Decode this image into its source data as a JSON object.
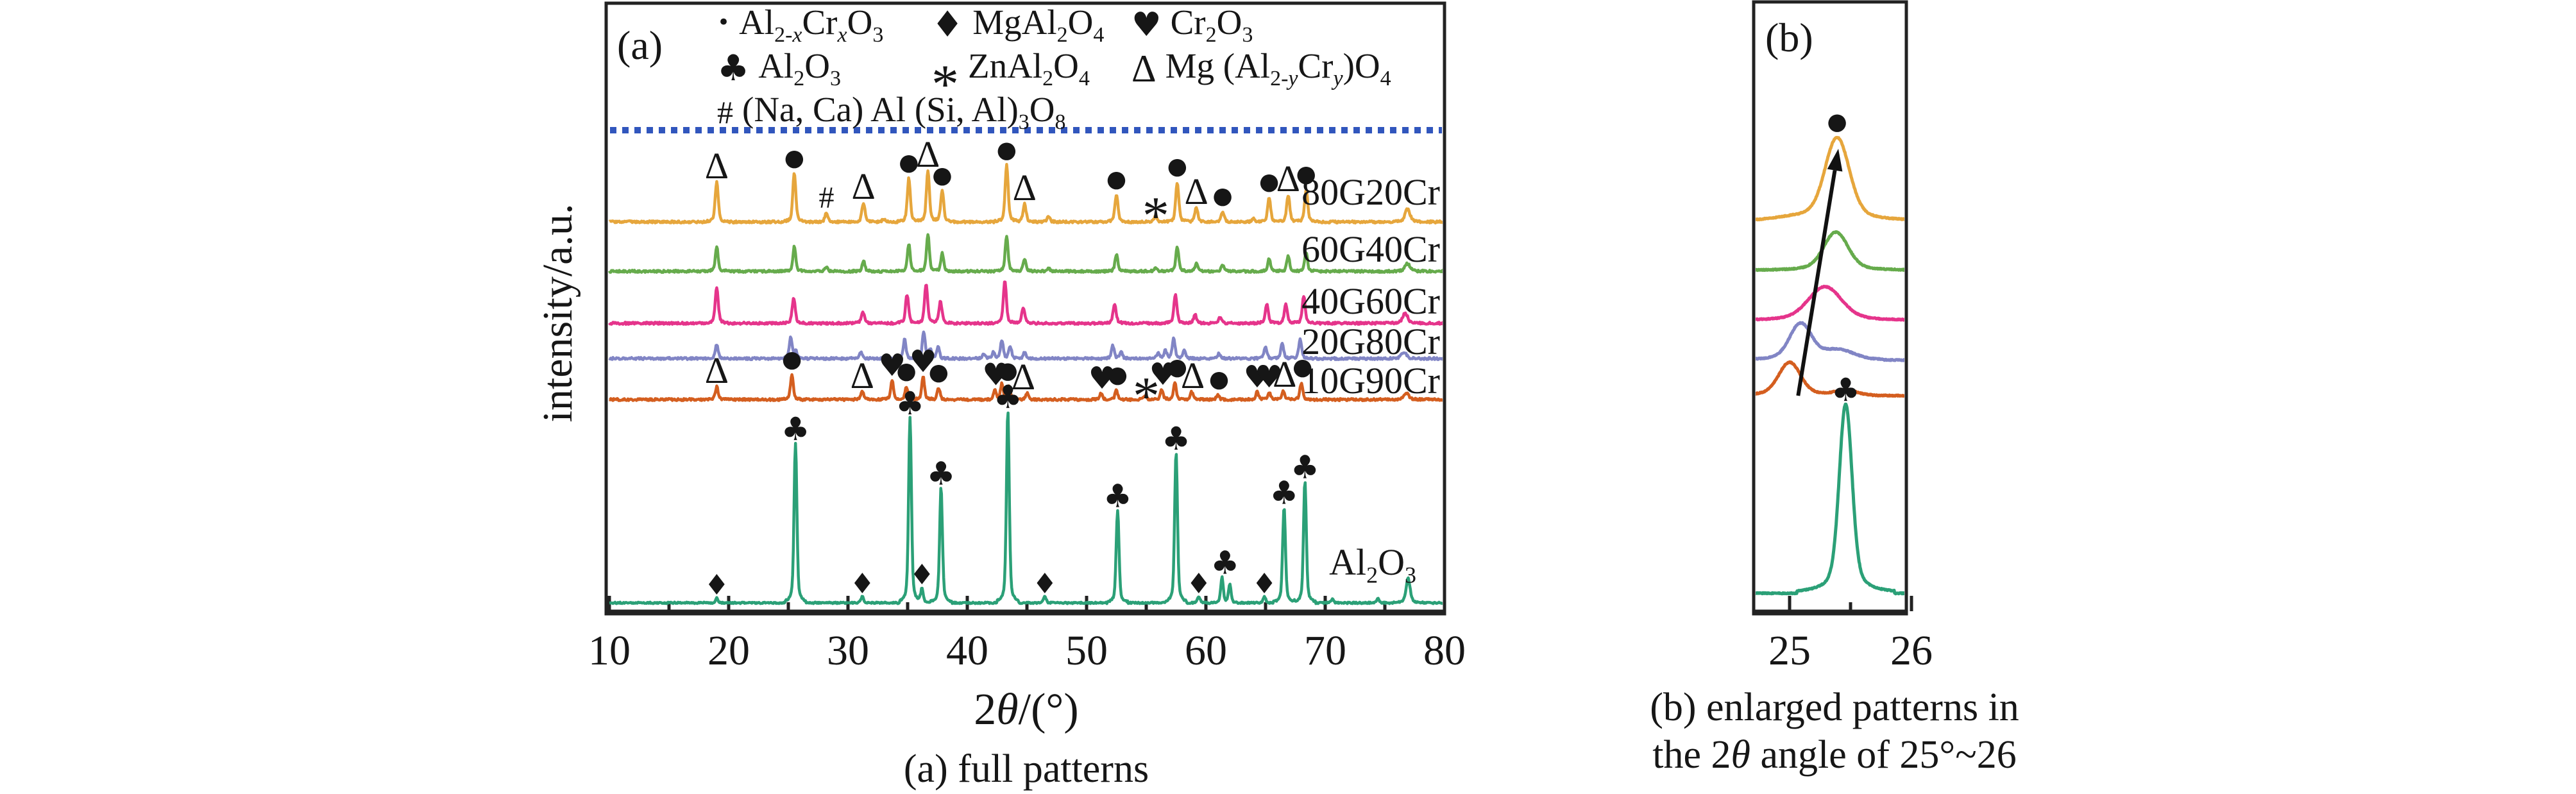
{
  "panel_a": {
    "label": "(a)",
    "ylabel": "intensity/a.u.",
    "xlabel_html": "2<i>θ</i>/(°)",
    "caption": "(a) full patterns",
    "xticks": [
      10,
      20,
      30,
      40,
      50,
      60,
      70,
      80
    ]
  },
  "panel_b": {
    "label": "(b)",
    "xticks": [
      25,
      26
    ],
    "caption_line1": "(b) enlarged patterns in",
    "caption_line2": "the 2<i>θ</i> angle of 25°~26"
  },
  "legend": {
    "rows": [
      [
        {
          "glyph": "•",
          "icon": "circle-marker-icon",
          "formula_html": "Al<sub>2-<i>x</i></sub>Cr<sub><i>x</i></sub>O<sub>3</sub>"
        },
        {
          "glyph": "♦",
          "icon": "diamond-marker-icon",
          "formula_html": "MgAl<sub>2</sub>O<sub>4</sub>"
        },
        {
          "glyph": "♥",
          "icon": "heart-marker-icon",
          "formula_html": "Cr<sub>2</sub>O<sub>3</sub>"
        }
      ],
      [
        {
          "glyph": "♣",
          "icon": "club-marker-icon",
          "formula_html": "Al<sub>2</sub>O<sub>3</sub>"
        },
        {
          "glyph": "*",
          "icon": "asterisk-marker-icon",
          "formula_html": "ZnAl<sub>2</sub>O<sub>4</sub>"
        },
        {
          "glyph": "Δ",
          "icon": "triangle-marker-icon",
          "formula_html": "Mg (Al<sub>2-<i>y</i></sub>Cr<sub><i>y</i></sub>)O<sub>4</sub>"
        }
      ],
      [
        {
          "glyph": "#",
          "icon": "hash-marker-icon",
          "formula_html": "(Na, Ca) Al (Si, Al)<sub>3</sub>O<sub>8</sub>"
        }
      ]
    ]
  },
  "colors": {
    "orange": "#E6A63C",
    "green": "#66AB4C",
    "pink": "#E5348B",
    "purple": "#8185C5",
    "red_orange": "#D45E1F",
    "teal": "#2BA077",
    "dotted_line": "#3156BD",
    "axis": "#222222",
    "marker": "#161616"
  },
  "chart_data": [
    {
      "id": "panel-a",
      "type": "line",
      "title": "(a) full patterns",
      "xlabel": "2θ/(°)",
      "ylabel": "intensity/a.u.",
      "xlim": [
        10,
        80
      ],
      "xticks": [
        10,
        20,
        30,
        40,
        50,
        60,
        70,
        80
      ],
      "grid": false,
      "legend_position": "top-left-inside",
      "series": [
        {
          "name": "80G20Cr",
          "color": "#E6A63C",
          "w": 0.12,
          "peaks": [
            [
              19.0,
              62
            ],
            [
              25.5,
              75
            ],
            [
              28.2,
              14
            ],
            [
              31.3,
              30
            ],
            [
              33.0,
              5
            ],
            [
              35.1,
              68
            ],
            [
              36.7,
              80
            ],
            [
              37.9,
              48
            ],
            [
              43.3,
              88
            ],
            [
              44.8,
              28
            ],
            [
              46.8,
              8
            ],
            [
              52.5,
              42
            ],
            [
              55.8,
              10
            ],
            [
              57.6,
              62
            ],
            [
              59.2,
              22
            ],
            [
              61.4,
              16
            ],
            [
              64.0,
              6
            ],
            [
              65.3,
              38
            ],
            [
              66.9,
              42
            ],
            [
              68.4,
              50
            ],
            [
              76.9,
              20,
              0.2
            ]
          ],
          "markers": [
            [
              "triangle",
              19.0
            ],
            [
              "circle",
              25.5
            ],
            [
              "hash",
              28.2
            ],
            [
              "triangle",
              31.3
            ],
            [
              "circle",
              35.1
            ],
            [
              "triangle",
              36.7
            ],
            [
              "circle",
              37.9
            ],
            [
              "circle",
              43.3
            ],
            [
              "triangle",
              44.8
            ],
            [
              "circle",
              52.5
            ],
            [
              "asterisk",
              55.8
            ],
            [
              "circle",
              57.6
            ],
            [
              "triangle",
              59.2
            ],
            [
              "circle",
              61.4
            ],
            [
              "circle",
              65.3
            ],
            [
              "triangle",
              66.9
            ],
            [
              "circle",
              68.4
            ]
          ]
        },
        {
          "name": "60G40Cr",
          "color": "#66AB4C",
          "w": 0.11,
          "peaks": [
            [
              19.0,
              38
            ],
            [
              25.5,
              38
            ],
            [
              28.2,
              7
            ],
            [
              31.3,
              16
            ],
            [
              35.1,
              42
            ],
            [
              36.7,
              58
            ],
            [
              37.9,
              28
            ],
            [
              43.3,
              56
            ],
            [
              44.8,
              18
            ],
            [
              46.8,
              5
            ],
            [
              52.5,
              26
            ],
            [
              55.8,
              6
            ],
            [
              57.6,
              38
            ],
            [
              59.2,
              12
            ],
            [
              61.4,
              9
            ],
            [
              65.3,
              20
            ],
            [
              66.9,
              24
            ],
            [
              68.4,
              30
            ],
            [
              76.9,
              12,
              0.2
            ]
          ],
          "markers": []
        },
        {
          "name": "40G60Cr",
          "color": "#E5348B",
          "w": 0.12,
          "peaks": [
            [
              19.0,
              56
            ],
            [
              25.45,
              40
            ],
            [
              31.25,
              18
            ],
            [
              34.95,
              44
            ],
            [
              36.55,
              62
            ],
            [
              37.75,
              34
            ],
            [
              43.15,
              66
            ],
            [
              44.7,
              24
            ],
            [
              52.35,
              30
            ],
            [
              57.45,
              44
            ],
            [
              59.1,
              13
            ],
            [
              61.2,
              10
            ],
            [
              65.1,
              30
            ],
            [
              66.7,
              30
            ],
            [
              68.2,
              42
            ],
            [
              76.7,
              16,
              0.2
            ]
          ],
          "markers": []
        },
        {
          "name": "20G80Cr",
          "color": "#8185C5",
          "w": 0.11,
          "peaks": [
            [
              19.0,
              22
            ],
            [
              25.2,
              32
            ],
            [
              25.6,
              12
            ],
            [
              31.1,
              10
            ],
            [
              34.75,
              30
            ],
            [
              36.35,
              42
            ],
            [
              36.9,
              14
            ],
            [
              37.55,
              18
            ],
            [
              41.4,
              7
            ],
            [
              42.2,
              10
            ],
            [
              42.9,
              28
            ],
            [
              43.6,
              18
            ],
            [
              44.8,
              10
            ],
            [
              52.2,
              20
            ],
            [
              52.9,
              10
            ],
            [
              56.0,
              8
            ],
            [
              56.6,
              12
            ],
            [
              57.3,
              32
            ],
            [
              58.2,
              12
            ],
            [
              61.1,
              8
            ],
            [
              65.0,
              18
            ],
            [
              66.4,
              24
            ],
            [
              67.9,
              30
            ],
            [
              76.6,
              10,
              0.2
            ]
          ],
          "markers": []
        },
        {
          "name": "10G90Cr",
          "color": "#D45E1F",
          "w": 0.11,
          "peaks": [
            [
              19.0,
              20
            ],
            [
              25.3,
              38
            ],
            [
              31.2,
              12
            ],
            [
              33.7,
              30
            ],
            [
              34.9,
              20
            ],
            [
              36.3,
              36
            ],
            [
              37.6,
              18
            ],
            [
              42.3,
              14
            ],
            [
              42.9,
              24
            ],
            [
              43.5,
              20
            ],
            [
              45.0,
              10
            ],
            [
              51.2,
              10
            ],
            [
              52.5,
              14
            ],
            [
              54.9,
              6
            ],
            [
              56.3,
              16
            ],
            [
              57.4,
              26
            ],
            [
              58.8,
              12
            ],
            [
              61.0,
              7
            ],
            [
              64.3,
              12
            ],
            [
              65.3,
              12
            ],
            [
              66.5,
              14
            ],
            [
              68.0,
              26
            ],
            [
              76.8,
              10,
              0.2
            ]
          ],
          "markers": [
            [
              "triangle",
              19.0
            ],
            [
              "circle",
              25.3
            ],
            [
              "triangle",
              31.2
            ],
            [
              "heart",
              33.7
            ],
            [
              "circle",
              34.9
            ],
            [
              "heart",
              36.3
            ],
            [
              "circle",
              37.6
            ],
            [
              "heart",
              42.4
            ],
            [
              "circle",
              43.4
            ],
            [
              "triangle",
              44.7
            ],
            [
              "heart",
              51.3
            ],
            [
              "circle",
              52.6
            ],
            [
              "asterisk",
              55.0
            ],
            [
              "heart",
              56.4
            ],
            [
              "circle",
              57.6
            ],
            [
              "triangle",
              58.9
            ],
            [
              "circle",
              61.1
            ],
            [
              "heart",
              64.3
            ],
            [
              "heart",
              65.3
            ],
            [
              "triangle",
              66.6
            ],
            [
              "circle",
              68.1
            ]
          ]
        },
        {
          "name": "Al2O3",
          "label_html": "Al<sub>2</sub>O<sub>3</sub>",
          "color": "#2BA077",
          "w": 0.1,
          "peaks": [
            [
              19.0,
              8
            ],
            [
              25.6,
              250,
              0.11
            ],
            [
              31.2,
              10
            ],
            [
              35.2,
              290,
              0.11
            ],
            [
              36.2,
              24
            ],
            [
              37.8,
              180,
              0.11
            ],
            [
              43.4,
              300,
              0.11
            ],
            [
              46.5,
              10
            ],
            [
              52.6,
              145,
              0.11
            ],
            [
              57.5,
              235,
              0.11
            ],
            [
              59.4,
              10
            ],
            [
              61.35,
              40
            ],
            [
              62.0,
              28
            ],
            [
              64.9,
              10
            ],
            [
              66.55,
              150,
              0.11
            ],
            [
              68.3,
              190,
              0.11
            ],
            [
              70.6,
              6
            ],
            [
              74.4,
              7
            ],
            [
              76.95,
              38,
              0.16
            ]
          ],
          "markers": [
            [
              "diamond",
              19.0
            ],
            [
              "club",
              25.6
            ],
            [
              "diamond",
              31.2
            ],
            [
              "club",
              35.2
            ],
            [
              "diamond",
              36.2
            ],
            [
              "club",
              37.8
            ],
            [
              "club",
              43.4
            ],
            [
              "diamond",
              46.5
            ],
            [
              "club",
              52.6
            ],
            [
              "club",
              57.5
            ],
            [
              "diamond",
              59.4
            ],
            [
              "club",
              61.6
            ],
            [
              "diamond",
              64.9
            ],
            [
              "club",
              66.55
            ],
            [
              "club",
              68.3
            ]
          ]
        }
      ]
    },
    {
      "id": "panel-b",
      "type": "line",
      "title": "(b) enlarged patterns in the 2θ angle of 25°~26",
      "xlabel": "2θ/(°)",
      "xlim": [
        24.71,
        25.96
      ],
      "xticks": [
        25,
        26
      ],
      "grid": false,
      "series": [
        {
          "name": "80G20Cr",
          "color": "#E6A63C",
          "w": 0.095,
          "peaks": [
            [
              25.39,
              130
            ],
            [
              25.05,
              4,
              0.15
            ]
          ],
          "markers": [
            [
              "circle",
              25.39
            ]
          ]
        },
        {
          "name": "60G40Cr",
          "color": "#66AB4C",
          "w": 0.095,
          "peaks": [
            [
              25.38,
              60
            ]
          ],
          "markers": []
        },
        {
          "name": "40G60Cr",
          "color": "#E5348B",
          "w": 0.13,
          "peaks": [
            [
              25.29,
              53
            ]
          ],
          "markers": []
        },
        {
          "name": "20G80Cr",
          "color": "#8185C5",
          "w": 0.085,
          "peaks": [
            [
              25.09,
              57
            ],
            [
              25.4,
              15,
              0.12
            ]
          ],
          "markers": []
        },
        {
          "name": "10G90Cr",
          "color": "#D45E1F",
          "w": 0.085,
          "peaks": [
            [
              25.0,
              52
            ],
            [
              25.46,
              8,
              0.08
            ]
          ],
          "markers": []
        },
        {
          "name": "Al2O3",
          "color": "#2BA077",
          "w": 0.05,
          "peaks": [
            [
              25.46,
              295
            ]
          ],
          "markers": [
            [
              "club",
              25.46
            ]
          ]
        }
      ],
      "annotations": {
        "shift_arrow": {
          "from_x": 25.07,
          "to_x": 25.4
        }
      }
    }
  ]
}
